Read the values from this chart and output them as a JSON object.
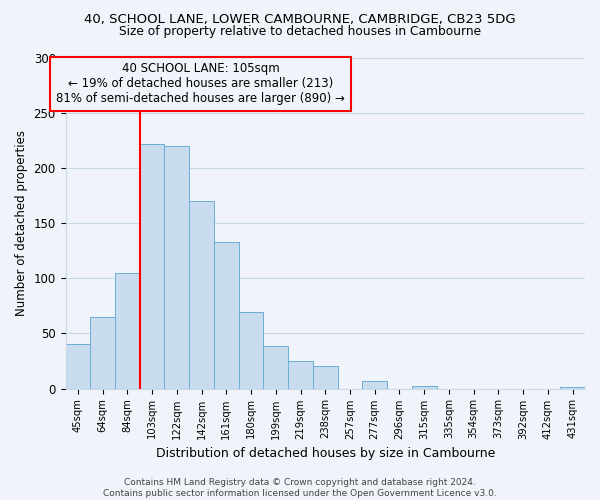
{
  "title": "40, SCHOOL LANE, LOWER CAMBOURNE, CAMBRIDGE, CB23 5DG",
  "subtitle": "Size of property relative to detached houses in Cambourne",
  "xlabel": "Distribution of detached houses by size in Cambourne",
  "ylabel": "Number of detached properties",
  "bar_labels": [
    "45sqm",
    "64sqm",
    "84sqm",
    "103sqm",
    "122sqm",
    "142sqm",
    "161sqm",
    "180sqm",
    "199sqm",
    "219sqm",
    "238sqm",
    "257sqm",
    "277sqm",
    "296sqm",
    "315sqm",
    "335sqm",
    "354sqm",
    "373sqm",
    "392sqm",
    "412sqm",
    "431sqm"
  ],
  "bar_values": [
    40,
    65,
    105,
    222,
    220,
    170,
    133,
    69,
    39,
    25,
    20,
    0,
    7,
    0,
    2,
    0,
    0,
    0,
    0,
    0,
    1
  ],
  "bar_color": "#c9dcef",
  "bar_edge_color": "#6aaed6",
  "ylim": [
    0,
    300
  ],
  "yticks": [
    0,
    50,
    100,
    150,
    200,
    250,
    300
  ],
  "annotation_title": "40 SCHOOL LANE: 105sqm",
  "annotation_line1": "← 19% of detached houses are smaller (213)",
  "annotation_line2": "81% of semi-detached houses are larger (890) →",
  "red_line_x": 2.5,
  "footer_line1": "Contains HM Land Registry data © Crown copyright and database right 2024.",
  "footer_line2": "Contains public sector information licensed under the Open Government Licence v3.0.",
  "background_color": "#f0f4fa",
  "grid_color": "#c8d8e8"
}
